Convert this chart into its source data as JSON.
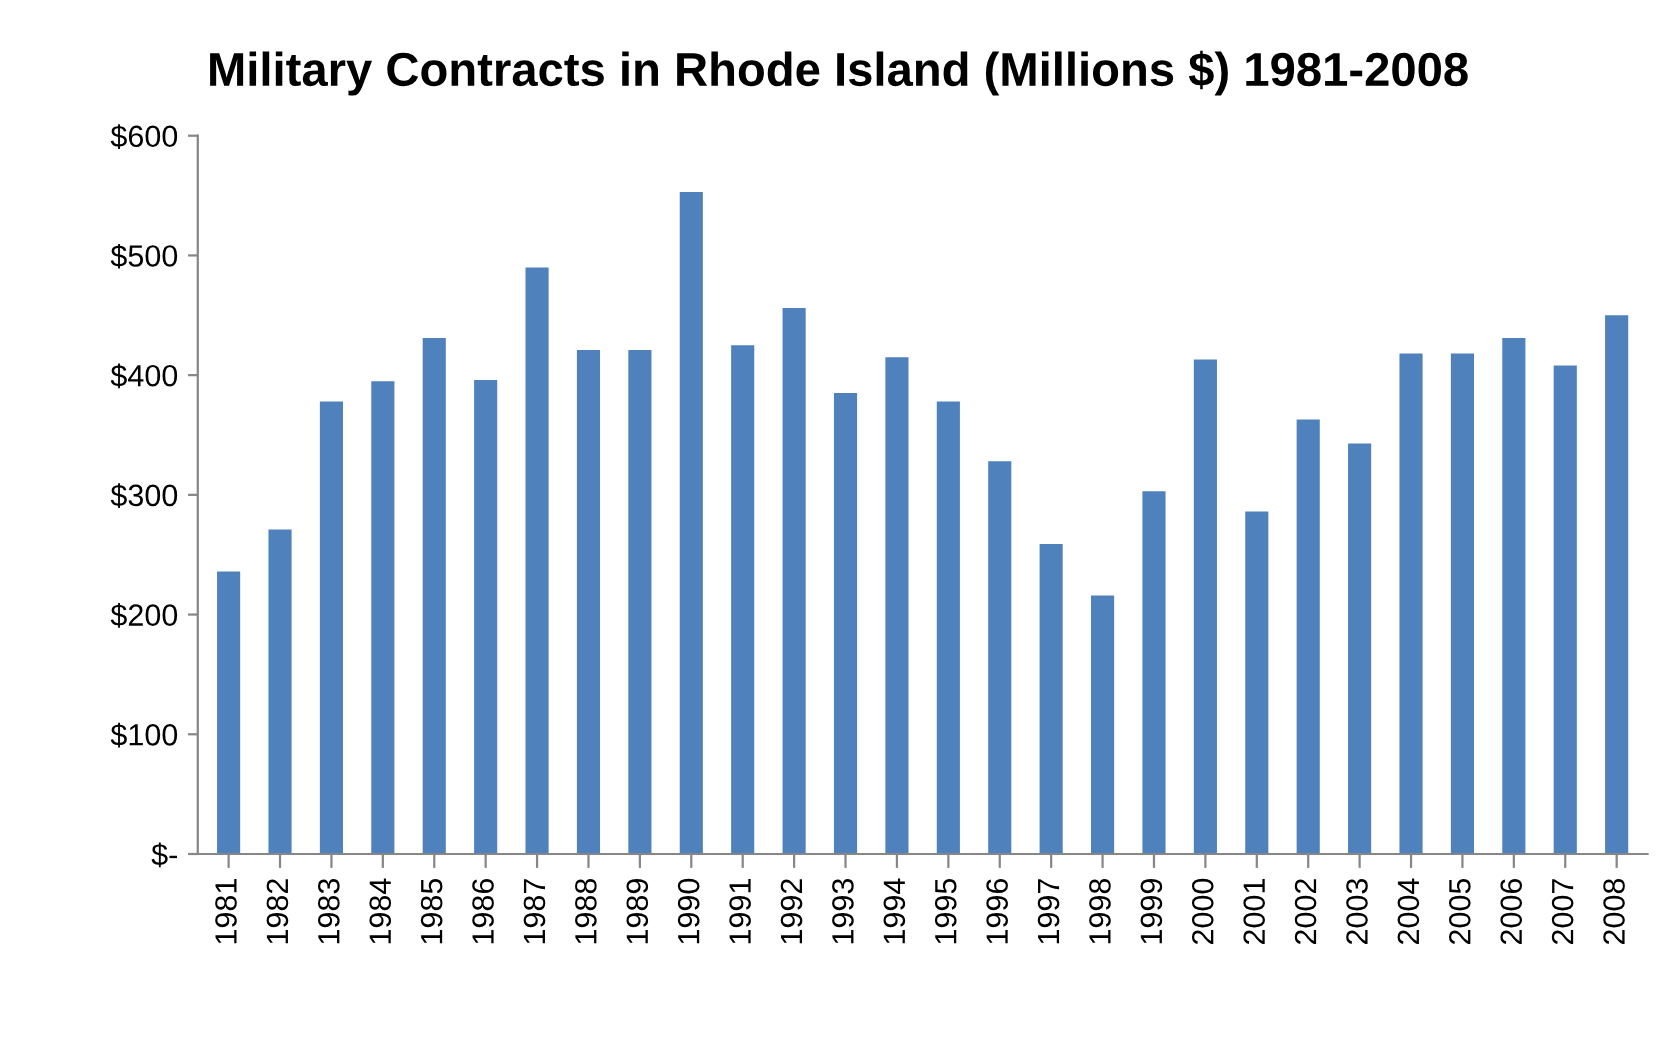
{
  "chart_data": {
    "type": "bar",
    "title": "Military Contracts in Rhode Island (Millions $) 1981-2008",
    "categories": [
      "1981",
      "1982",
      "1983",
      "1984",
      "1985",
      "1986",
      "1987",
      "1988",
      "1989",
      "1990",
      "1991",
      "1992",
      "1993",
      "1994",
      "1995",
      "1996",
      "1997",
      "1998",
      "1999",
      "2000",
      "2001",
      "2002",
      "2003",
      "2004",
      "2005",
      "2006",
      "2007",
      "2008"
    ],
    "values": [
      236,
      271,
      378,
      395,
      431,
      396,
      490,
      421,
      421,
      553,
      425,
      456,
      385,
      415,
      378,
      328,
      259,
      216,
      303,
      413,
      286,
      363,
      343,
      418,
      418,
      431,
      408,
      450
    ],
    "color": "#4f81bd",
    "ylim": [
      0,
      600
    ],
    "yticks": [
      {
        "value": 0,
        "label": "$-"
      },
      {
        "value": 100,
        "label": "$100"
      },
      {
        "value": 200,
        "label": "$200"
      },
      {
        "value": 300,
        "label": "$300"
      },
      {
        "value": 400,
        "label": "$400"
      },
      {
        "value": 500,
        "label": "$500"
      },
      {
        "value": 600,
        "label": "$600"
      }
    ],
    "grid": false
  }
}
